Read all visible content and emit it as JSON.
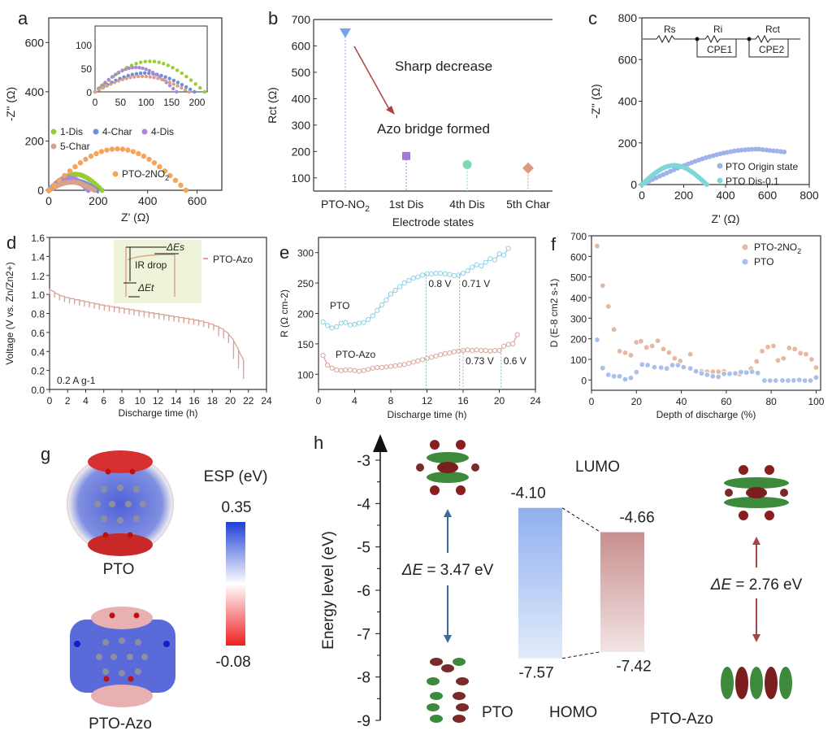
{
  "figure": {
    "panel_labels": [
      "a",
      "b",
      "c",
      "d",
      "e",
      "f",
      "g",
      "h"
    ]
  },
  "chart_data": [
    {
      "id": "a",
      "type": "scatter",
      "xlabel": "Z' (Ω)",
      "ylabel": "-Z'' (Ω)",
      "xlim": [
        0,
        700
      ],
      "ylim": [
        0,
        700
      ],
      "xticks": [
        0,
        200,
        400,
        600
      ],
      "yticks": [
        0,
        200,
        400,
        600
      ],
      "series": [
        {
          "name": "1-Dis",
          "color": "#9acd32",
          "diameter": 215,
          "max": 65
        },
        {
          "name": "4-Char",
          "color": "#6b8fd8",
          "diameter": 195,
          "max": 40
        },
        {
          "name": "4-Dis",
          "color": "#a98ad6",
          "diameter": 160,
          "max": 52
        },
        {
          "name": "5-Char",
          "color": "#d9a08c",
          "diameter": 185,
          "max": 33
        },
        {
          "name": "PTO-2NO2",
          "label_main": "PTO-2NO",
          "label_sub": "2",
          "color": "#f5a55a",
          "diameter": 555,
          "max": 168
        }
      ],
      "inset": {
        "xlim": [
          0,
          220
        ],
        "ylim": [
          0,
          140
        ],
        "xticks": [
          0,
          50,
          100,
          150,
          200
        ],
        "yticks": [
          0,
          50,
          100
        ]
      }
    },
    {
      "id": "b",
      "type": "scatter",
      "xlabel": "Electrode states",
      "ylabel": "Rct (Ω)",
      "ylim": [
        50,
        700
      ],
      "yticks": [
        100,
        200,
        300,
        400,
        500,
        600,
        700
      ],
      "categories": [
        "PTO-NO2",
        "1st Dis",
        "4th Dis",
        "5th Char"
      ],
      "category_labels": [
        {
          "main": "PTO-NO",
          "sub": "2"
        },
        {
          "main": "1st Dis",
          "sub": ""
        },
        {
          "main": "4th Dis",
          "sub": ""
        },
        {
          "main": "5th Char",
          "sub": ""
        }
      ],
      "values": [
        648,
        183,
        150,
        137
      ],
      "markers": [
        "triangle-down",
        "square",
        "circle",
        "diamond"
      ],
      "colors": [
        "#7ba3e8",
        "#a07bd4",
        "#7ed8b0",
        "#d99a7e"
      ],
      "annotations": [
        "Sharp decrease",
        "Azo bridge formed"
      ]
    },
    {
      "id": "c",
      "type": "scatter",
      "xlabel": "Z' (Ω)",
      "ylabel": "-Z'' (Ω)",
      "xlim": [
        0,
        800
      ],
      "ylim": [
        0,
        800
      ],
      "xticks": [
        0,
        200,
        400,
        600,
        800
      ],
      "yticks": [
        0,
        200,
        400,
        600,
        800
      ],
      "series": [
        {
          "name": "PTO Origin state",
          "color": "#9fb3ea",
          "diameter": 1150,
          "end": 680,
          "max": 170
        },
        {
          "name": "PTO Dis-0.1",
          "color": "#7dd6d8",
          "diameter": 310,
          "max": 92
        }
      ],
      "circuit": {
        "labels": [
          "Rs",
          "Ri",
          "Rct",
          "CPE1",
          "CPE2"
        ]
      }
    },
    {
      "id": "d",
      "type": "line",
      "xlabel": "Discharge time (h)",
      "ylabel": "Voltage (V vs. Zn/Zn2+)",
      "xlim": [
        0,
        24
      ],
      "ylim": [
        0,
        1.6
      ],
      "xticks": [
        0,
        2,
        4,
        6,
        8,
        10,
        12,
        14,
        16,
        18,
        20,
        22,
        24
      ],
      "yticks": [
        0.0,
        0.2,
        0.4,
        0.6,
        0.8,
        1.0,
        1.2,
        1.4,
        1.6
      ],
      "series": [
        {
          "name": "PTO-Azo",
          "color": "#d9a598",
          "x": [
            0,
            0.5,
            1,
            2,
            3,
            4,
            5,
            6,
            7,
            8,
            9,
            10,
            11,
            12,
            13,
            14,
            15,
            16,
            17,
            18,
            19,
            19.5,
            20,
            20.5,
            21,
            21.5,
            22
          ],
          "y": [
            1.06,
            1.03,
            1.0,
            0.97,
            0.95,
            0.93,
            0.91,
            0.89,
            0.875,
            0.86,
            0.845,
            0.83,
            0.815,
            0.8,
            0.785,
            0.77,
            0.755,
            0.74,
            0.72,
            0.69,
            0.65,
            0.62,
            0.57,
            0.5,
            0.4,
            0.3,
            0.34
          ]
        }
      ],
      "annotation": "0.2 A g-1",
      "inset_labels": [
        "IR drop",
        "ΔEs",
        "ΔEt"
      ]
    },
    {
      "id": "e",
      "type": "line",
      "xlabel": "Discharge time (h)",
      "ylabel": "R (Ω cm-2)",
      "xlim": [
        0,
        24
      ],
      "ylim": [
        75,
        325
      ],
      "xticks": [
        0,
        4,
        8,
        12,
        16,
        20,
        24
      ],
      "yticks": [
        100,
        150,
        200,
        250,
        300
      ],
      "series": [
        {
          "name": "PTO",
          "color": "#8ecfe6",
          "x": [
            0.5,
            1,
            1.5,
            2,
            2.5,
            3,
            3.5,
            4,
            4.5,
            5,
            5.5,
            6,
            6.5,
            7,
            7.5,
            8,
            8.5,
            9,
            9.5,
            10,
            10.5,
            11,
            11.5,
            12,
            12.5,
            13,
            13.5,
            14,
            14.5,
            15,
            15.5,
            16,
            16.5,
            17,
            17.5,
            18,
            18.5,
            19,
            19.5,
            20,
            20.5,
            21
          ],
          "y": [
            186,
            180,
            176,
            178,
            184,
            185,
            181,
            182,
            184,
            185,
            190,
            196,
            205,
            214,
            222,
            232,
            238,
            244,
            250,
            254,
            258,
            260,
            263,
            265,
            265,
            266,
            266,
            265,
            264,
            262,
            263,
            266,
            270,
            276,
            280,
            278,
            284,
            290,
            288,
            298,
            296,
            307
          ]
        },
        {
          "name": "PTO-Azo",
          "color": "#d9a598",
          "x": [
            0.5,
            1,
            1.5,
            2,
            2.5,
            3,
            3.5,
            4,
            4.5,
            5,
            5.5,
            6,
            6.5,
            7,
            7.5,
            8,
            8.5,
            9,
            9.5,
            10,
            10.5,
            11,
            11.5,
            12,
            12.5,
            13,
            13.5,
            14,
            14.5,
            15,
            15.5,
            16,
            16.5,
            17,
            17.5,
            18,
            18.5,
            19,
            19.5,
            20,
            20.5,
            21,
            21.5,
            22
          ],
          "y": [
            131,
            115,
            110,
            107,
            106,
            107,
            107,
            106,
            105,
            106,
            108,
            110,
            111,
            111,
            112,
            113,
            114,
            115,
            116,
            118,
            120,
            122,
            124,
            126,
            128,
            130,
            132,
            134,
            135,
            137,
            138,
            139,
            140,
            139,
            140,
            139,
            139,
            138,
            139,
            139,
            146,
            149,
            150,
            165
          ]
        }
      ],
      "annotations": [
        {
          "text": "0.8 V",
          "x": 11.9
        },
        {
          "text": "0.71 V",
          "x": 15.6
        },
        {
          "text": "0.73 V",
          "x": 16.0
        },
        {
          "text": "0.6 V",
          "x": 20.2
        }
      ]
    },
    {
      "id": "f",
      "type": "scatter",
      "xlabel": "Depth of discharge (%)",
      "ylabel": "D (E-8 cm2 s-1)",
      "xlim": [
        0,
        102
      ],
      "ylim": [
        -50,
        700
      ],
      "xticks": [
        0,
        20,
        40,
        60,
        80,
        100
      ],
      "yticks": [
        0,
        100,
        200,
        300,
        400,
        500,
        600,
        700
      ],
      "series": [
        {
          "name": "PTO-2NO2",
          "label_main": "PTO-2NO",
          "label_sub": "2",
          "color": "#e6b8a0",
          "x": [
            2.5,
            5,
            7.5,
            10,
            12.5,
            15,
            17.5,
            20,
            22,
            24.5,
            27,
            29.5,
            32,
            34.5,
            37,
            39.5,
            44,
            46.5,
            49,
            51.5,
            54,
            56.5,
            59,
            61.5,
            64,
            66,
            68.5,
            71,
            73.5,
            76,
            78.5,
            81,
            83,
            85.5,
            88,
            90.5,
            93,
            95.5,
            98,
            100
          ],
          "y": [
            650,
            458,
            357,
            245,
            140,
            132,
            120,
            183,
            188,
            158,
            165,
            190,
            150,
            133,
            105,
            92,
            125,
            45,
            42,
            40,
            40,
            40,
            42,
            35,
            33,
            28,
            38,
            55,
            90,
            140,
            160,
            165,
            95,
            105,
            155,
            150,
            130,
            125,
            100,
            60
          ]
        },
        {
          "name": "PTO",
          "color": "#a8c0ec",
          "x": [
            2.5,
            5,
            7.5,
            10,
            12.5,
            15,
            17.5,
            20,
            22.5,
            25,
            28,
            31,
            33.5,
            36,
            38.5,
            41,
            44,
            46.5,
            49,
            51.5,
            54,
            56.5,
            59,
            61.5,
            64,
            66.5,
            69,
            71.5,
            74,
            77,
            79.5,
            82,
            85,
            87.5,
            90,
            92.5,
            95,
            97.5,
            100
          ],
          "y": [
            195,
            58,
            25,
            18,
            18,
            3,
            10,
            38,
            75,
            72,
            62,
            60,
            56,
            72,
            72,
            62,
            56,
            42,
            32,
            25,
            18,
            15,
            30,
            30,
            32,
            38,
            36,
            40,
            34,
            -3,
            -3,
            -3,
            -2,
            -3,
            -2,
            0,
            -3,
            -3,
            12
          ]
        }
      ]
    },
    {
      "id": "h",
      "type": "bar",
      "ylabel": "Energy level (eV)",
      "ylim": [
        -9,
        -3
      ],
      "yticks": [
        -3,
        -4,
        -5,
        -6,
        -7,
        -8,
        -9
      ],
      "categories": [
        "PTO",
        "PTO-Azo"
      ],
      "series": [
        {
          "name": "LUMO",
          "values": [
            -4.1,
            -4.66
          ]
        },
        {
          "name": "HOMO",
          "values": [
            -7.57,
            -7.42
          ]
        }
      ],
      "bar_colors": [
        "#8fb0ee",
        "#c98e8e"
      ],
      "value_labels": {
        "lumo": [
          "-4.10",
          "-4.66"
        ],
        "homo": [
          "-7.57",
          "-7.42"
        ]
      },
      "gaps": [
        {
          "label_italic": "ΔE",
          "label_rest": " = 3.47 eV",
          "color": "#3a6aa0"
        },
        {
          "label_italic": "ΔE",
          "label_rest": " = 2.76 eV",
          "color": "#a04848"
        }
      ],
      "level_labels": [
        "LUMO",
        "HOMO"
      ],
      "molecule_labels": [
        "PTO",
        "PTO-Azo"
      ]
    }
  ],
  "panel_g": {
    "title": "ESP (eV)",
    "max": "0.35",
    "min": "-0.08",
    "molecules": [
      "PTO",
      "PTO-Azo"
    ]
  }
}
